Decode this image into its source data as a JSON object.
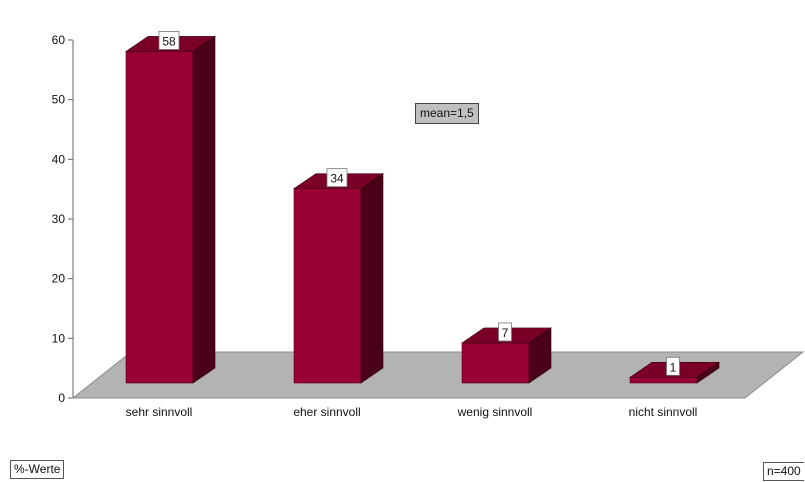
{
  "chart_data": {
    "type": "bar",
    "categories": [
      "sehr sinnvoll",
      "eher sinnvoll",
      "wenig sinnvoll",
      "nicht sinnvoll"
    ],
    "values": [
      58,
      34,
      7,
      1
    ],
    "ylim": [
      0,
      60
    ],
    "yticks": [
      0,
      10,
      20,
      30,
      40,
      50,
      60
    ],
    "grid": false,
    "legend": "none",
    "bar_color": "#990033",
    "annotations": {
      "mean": "mean=1,5",
      "unit": "%-Werte",
      "n": "n=400"
    }
  }
}
